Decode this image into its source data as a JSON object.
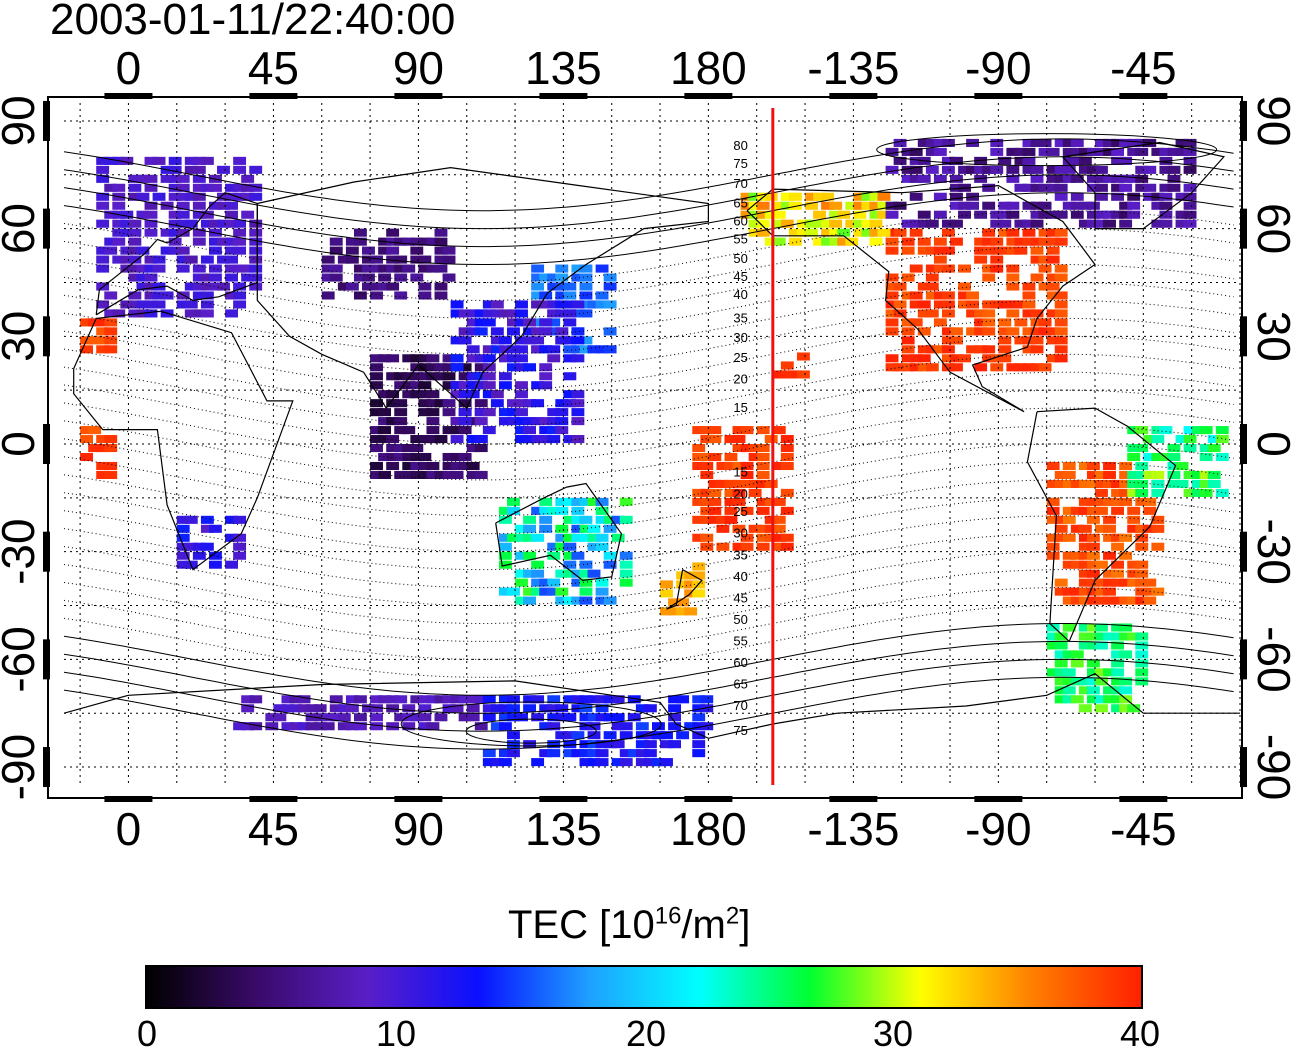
{
  "title": "2003-01-11/22:40:00",
  "map": {
    "type": "global TEC map",
    "projection": "equirectangular",
    "lon_range": [
      -20,
      345
    ],
    "lat_range": [
      -95,
      95
    ],
    "top_lon_labels": [
      "0",
      "45",
      "90",
      "135",
      "180",
      "-135",
      "-90",
      "-45"
    ],
    "bottom_lon_labels": [
      "0",
      "45",
      "90",
      "135",
      "180",
      "-135",
      "-90",
      "-45"
    ],
    "left_lat_labels": [
      "90",
      "60",
      "30",
      "0",
      "-30",
      "-60",
      "-90"
    ],
    "right_lat_labels": [
      "90",
      "60",
      "30",
      "0",
      "-30",
      "-60",
      "-90"
    ],
    "lon_tick_values": [
      0,
      45,
      90,
      135,
      180,
      225,
      270,
      315
    ],
    "lat_tick_values": [
      90,
      60,
      30,
      0,
      -30,
      -60,
      -90
    ],
    "gridlines": "dotted, every 15 degrees",
    "terminator_line": {
      "color": "#ee1111",
      "lon": 200
    },
    "magnetic_latitude_labels": [
      "80",
      "75",
      "70",
      "65",
      "60",
      "55",
      "50",
      "45",
      "40",
      "35",
      "30",
      "25",
      "20",
      "15",
      "15",
      "20",
      "25",
      "30",
      "35",
      "40",
      "45",
      "50",
      "55",
      "60",
      "65",
      "70",
      "75"
    ],
    "magnetic_label_lats": [
      83,
      78,
      72.5,
      67,
      62,
      57,
      51.5,
      46.5,
      41.5,
      35,
      29.5,
      24,
      18,
      10,
      -8,
      -14,
      -19,
      -25,
      -31,
      -37,
      -43,
      -49,
      -55,
      -61,
      -67,
      -73,
      -80
    ]
  },
  "colorbar": {
    "title_main": "TEC  [10",
    "title_exp": "16",
    "title_mid": "/m",
    "title_exp2": "2",
    "title_end": "]",
    "min": 0,
    "max": 40,
    "tick_labels": [
      "0",
      "10",
      "20",
      "30",
      "40"
    ],
    "stops": [
      "#000000",
      "#3a0a6a",
      "#5a1ec8",
      "#0a10ff",
      "#1ea0ff",
      "#00ffff",
      "#00ff30",
      "#ffff00",
      "#ff8000",
      "#ff2000"
    ]
  },
  "tec_regions": [
    {
      "name": "europe",
      "lon": [
        -10,
        40
      ],
      "lat": [
        35,
        80
      ],
      "tec": [
        7.5,
        11
      ]
    },
    {
      "name": "north-america",
      "lon": [
        235,
        290
      ],
      "lat": [
        20,
        60
      ],
      "tec": [
        37,
        40
      ]
    },
    {
      "name": "alaska",
      "lon": [
        190,
        235
      ],
      "lat": [
        55,
        68
      ],
      "tec": [
        28,
        36
      ]
    },
    {
      "name": "canada-arctic",
      "lon": [
        235,
        330
      ],
      "lat": [
        60,
        85
      ],
      "tec": [
        4,
        9
      ]
    },
    {
      "name": "japan",
      "lon": [
        125,
        150
      ],
      "lat": [
        25,
        50
      ],
      "tec": [
        14,
        18
      ]
    },
    {
      "name": "central-asia",
      "lon": [
        60,
        100
      ],
      "lat": [
        40,
        60
      ],
      "tec": [
        4,
        7
      ]
    },
    {
      "name": "south-america",
      "lon": [
        285,
        320
      ],
      "lat": [
        -45,
        -5
      ],
      "tec": [
        36,
        40
      ]
    },
    {
      "name": "patagonia",
      "lon": [
        285,
        315
      ],
      "lat": [
        -75,
        -50
      ],
      "tec": [
        23,
        29
      ]
    },
    {
      "name": "east-south-america",
      "lon": [
        310,
        340
      ],
      "lat": [
        -15,
        5
      ],
      "tec": [
        22,
        30
      ]
    },
    {
      "name": "southern-africa",
      "lon": [
        15,
        35
      ],
      "lat": [
        -35,
        -20
      ],
      "tec": [
        9,
        14
      ]
    },
    {
      "name": "australia",
      "lon": [
        115,
        155
      ],
      "lat": [
        -45,
        -15
      ],
      "tec": [
        15,
        28
      ]
    },
    {
      "name": "new-zealand",
      "lon": [
        165,
        180
      ],
      "lat": [
        -48,
        -35
      ],
      "tec": [
        32,
        35
      ]
    },
    {
      "name": "pacific-islands",
      "lon": [
        175,
        205
      ],
      "lat": [
        -30,
        5
      ],
      "tec": [
        37,
        40
      ]
    },
    {
      "name": "hawaii",
      "lon": [
        200,
        210
      ],
      "lat": [
        18,
        25
      ],
      "tec": [
        38,
        40
      ]
    },
    {
      "name": "antarctica-east",
      "lon": [
        30,
        110
      ],
      "lat": [
        -80,
        -70
      ],
      "tec": [
        7,
        10
      ]
    },
    {
      "name": "antarctica-ross",
      "lon": [
        110,
        180
      ],
      "lat": [
        -90,
        -70
      ],
      "tec": [
        11,
        15
      ]
    },
    {
      "name": "west-africa-coast",
      "lon": [
        -15,
        -5
      ],
      "lat": [
        -10,
        5
      ],
      "tec": [
        37,
        40
      ]
    },
    {
      "name": "iberia",
      "lon": [
        -15,
        -5
      ],
      "lat": [
        25,
        35
      ],
      "tec": [
        37,
        40
      ]
    },
    {
      "name": "india-se-asia",
      "lon": [
        75,
        110
      ],
      "lat": [
        -10,
        25
      ],
      "tec": [
        2,
        6
      ]
    },
    {
      "name": "east-asia-scatter",
      "lon": [
        100,
        140
      ],
      "lat": [
        0,
        40
      ],
      "tec": [
        8,
        14
      ]
    }
  ]
}
